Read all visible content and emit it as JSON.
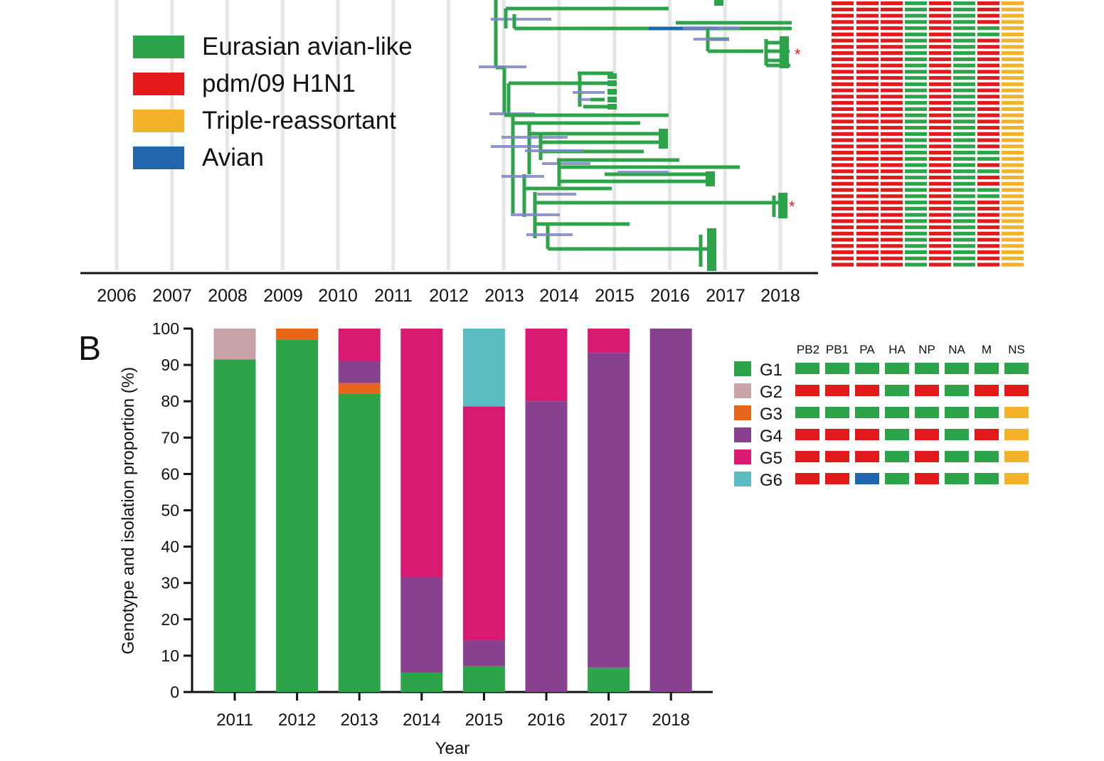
{
  "colors": {
    "eurasian": "#2ea44a",
    "pdm": "#e31a1c",
    "triple": "#f2b22a",
    "avian": "#1f66ad",
    "G1": "#2ea44a",
    "G2": "#c9a2a8",
    "G3": "#e8661a",
    "G4": "#87418f",
    "G5": "#d81a72",
    "G6": "#5bbcc2"
  },
  "panelA": {
    "legend": [
      {
        "label": "Eurasian avian-like",
        "color": "#2ea44a"
      },
      {
        "label": "pdm/09 H1N1",
        "color": "#e31a1c"
      },
      {
        "label": "Triple-reassortant",
        "color": "#f2b22a"
      },
      {
        "label": "Avian",
        "color": "#1f66ad"
      }
    ],
    "years": [
      "2006",
      "2007",
      "2008",
      "2009",
      "2010",
      "2011",
      "2012",
      "2013",
      "2014",
      "2015",
      "2016",
      "2017",
      "2018"
    ],
    "asterisk": "*"
  },
  "panelB": {
    "label": "B",
    "legend_headers": [
      "PB2",
      "PB1",
      "PA",
      "HA",
      "NP",
      "NA",
      "M",
      "NS"
    ],
    "genotypes": [
      {
        "name": "G1",
        "color": "#2ea44a",
        "segments": [
          "Eurasian",
          "Eurasian",
          "Eurasian",
          "Eurasian",
          "Eurasian",
          "Eurasian",
          "Eurasian",
          "Eurasian"
        ]
      },
      {
        "name": "G2",
        "color": "#c9a2a8",
        "segments": [
          "pdm",
          "pdm",
          "pdm",
          "Eurasian",
          "pdm",
          "Eurasian",
          "pdm",
          "pdm"
        ]
      },
      {
        "name": "G3",
        "color": "#e8661a",
        "segments": [
          "Eurasian",
          "Eurasian",
          "Eurasian",
          "Eurasian",
          "Eurasian",
          "Eurasian",
          "Eurasian",
          "Triple"
        ]
      },
      {
        "name": "G4",
        "color": "#87418f",
        "segments": [
          "pdm",
          "pdm",
          "pdm",
          "Eurasian",
          "pdm",
          "Eurasian",
          "pdm",
          "Triple"
        ]
      },
      {
        "name": "G5",
        "color": "#d81a72",
        "segments": [
          "pdm",
          "pdm",
          "pdm",
          "Eurasian",
          "pdm",
          "Eurasian",
          "Eurasian",
          "Triple"
        ]
      },
      {
        "name": "G6",
        "color": "#5bbcc2",
        "segments": [
          "pdm",
          "pdm",
          "Avian",
          "Eurasian",
          "pdm",
          "Eurasian",
          "Eurasian",
          "Triple"
        ]
      }
    ]
  },
  "chart_data": {
    "type": "bar",
    "stacked": true,
    "title": "",
    "xlabel": "Year",
    "ylabel": "Genotype and isolation proportion (%)",
    "ylim": [
      0,
      100
    ],
    "yticks": [
      "0",
      "10",
      "20",
      "30",
      "40",
      "50",
      "60",
      "70",
      "80",
      "90",
      "100"
    ],
    "categories": [
      "2011",
      "2012",
      "2013",
      "2014",
      "2015",
      "2016",
      "2017",
      "2018"
    ],
    "series": [
      {
        "name": "G1",
        "values": [
          91.5,
          97,
          82,
          5.3,
          7.1,
          0,
          6.7,
          0
        ]
      },
      {
        "name": "G2",
        "values": [
          8.5,
          0,
          0,
          0,
          0,
          0,
          0,
          0
        ]
      },
      {
        "name": "G3",
        "values": [
          0,
          3,
          3,
          0,
          0,
          0,
          0,
          0
        ]
      },
      {
        "name": "G4",
        "values": [
          0,
          0,
          6,
          26.3,
          7.1,
          80,
          86.6,
          100
        ]
      },
      {
        "name": "G5",
        "values": [
          0,
          0,
          9,
          68.4,
          64.4,
          20,
          6.7,
          0
        ]
      },
      {
        "name": "G6",
        "values": [
          0,
          0,
          0,
          0,
          21.4,
          0,
          0,
          0
        ]
      }
    ]
  }
}
